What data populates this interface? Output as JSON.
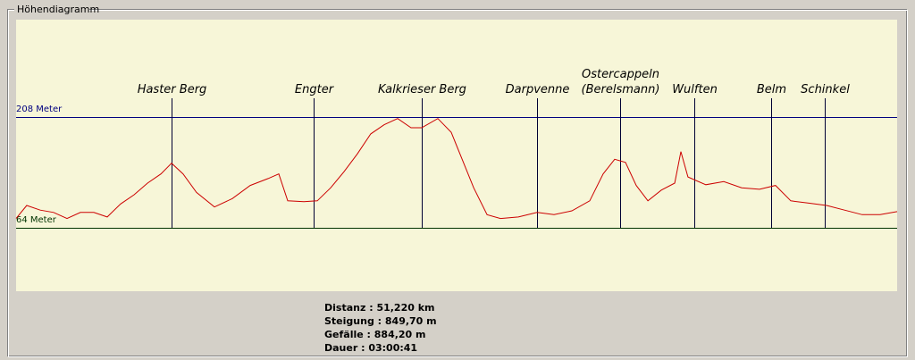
{
  "window": {
    "group_title": "Höhendiagramm",
    "stats": [
      {
        "label": "Distanz",
        "value": "51,220 km"
      },
      {
        "label": "Steigung",
        "value": "849,70 m"
      },
      {
        "label": "Gefälle",
        "value": "884,20 m"
      },
      {
        "label": "Dauer",
        "value": "03:00:41"
      }
    ]
  },
  "chart_data": {
    "type": "line",
    "xlim": [
      0,
      51.22
    ],
    "ylim": [
      -18.5,
      334.6
    ],
    "yticks": [
      {
        "value": 64,
        "label": "64 Meter"
      },
      {
        "value": 208,
        "label": "208 Meter"
      }
    ],
    "x": [
      0,
      0.62,
      1.4,
      2.18,
      2.96,
      3.74,
      4.52,
      5.3,
      6.08,
      6.86,
      7.64,
      8.42,
      9.04,
      9.71,
      10.49,
      11.53,
      12.57,
      13.61,
      14.65,
      15.27,
      15.79,
      16.73,
      17.51,
      18.29,
      19.07,
      19.84,
      20.62,
      21.4,
      22.18,
      22.96,
      23.58,
      24.52,
      25.3,
      25.97,
      26.6,
      27.38,
      28.16,
      29.2,
      30.29,
      31.27,
      32.31,
      33.35,
      34.13,
      34.8,
      35.43,
      36.05,
      36.73,
      37.51,
      38.29,
      38.65,
      39.06,
      40.1,
      41.14,
      42.18,
      43.22,
      44.15,
      45.04,
      46.08,
      47.12,
      48.16,
      49.19,
      50.23,
      51.22
    ],
    "series": [
      {
        "color": "#cc0000",
        "values": [
          76,
          93,
          87,
          84,
          76,
          84,
          84,
          78,
          95,
          107,
          122,
          134,
          148,
          134,
          110,
          91,
          102,
          119,
          128,
          134,
          99,
          98,
          99,
          116,
          137,
          160,
          186,
          198,
          206,
          194,
          194,
          206,
          188,
          151,
          116,
          81,
          76,
          78,
          84,
          81,
          86,
          99,
          134,
          153,
          149,
          119,
          99,
          113,
          122,
          163,
          130,
          120,
          124,
          116,
          114,
          119,
          99,
          96,
          93,
          87,
          81,
          81,
          85
        ]
      }
    ],
    "markers": [
      {
        "label": [
          "Haster Berg"
        ],
        "x": 9.04
      },
      {
        "label": [
          "Engter"
        ],
        "x": 17.3
      },
      {
        "label": [
          "Kalkrieser Berg"
        ],
        "x": 23.58
      },
      {
        "label": [
          "Darpvenne"
        ],
        "x": 30.29
      },
      {
        "label": [
          "Ostercappeln",
          "(Berelsmann)"
        ],
        "x": 35.12
      },
      {
        "label": [
          "Wulften"
        ],
        "x": 39.43
      },
      {
        "label": [
          "Belm"
        ],
        "x": 43.9
      },
      {
        "label": [
          "Schinkel"
        ],
        "x": 47.01
      }
    ]
  }
}
